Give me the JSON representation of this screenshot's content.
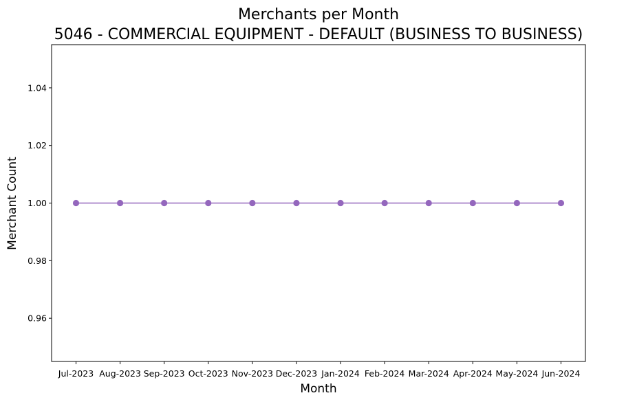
{
  "chart_data": {
    "type": "line",
    "title": "Merchants per Month",
    "subtitle": "5046 - COMMERCIAL EQUIPMENT - DEFAULT (BUSINESS TO BUSINESS)",
    "xlabel": "Month",
    "ylabel": "Merchant Count",
    "categories": [
      "Jul-2023",
      "Aug-2023",
      "Sep-2023",
      "Oct-2023",
      "Nov-2023",
      "Dec-2023",
      "Jan-2024",
      "Feb-2024",
      "Mar-2024",
      "Apr-2024",
      "May-2024",
      "Jun-2024"
    ],
    "series": [
      {
        "values": [
          1,
          1,
          1,
          1,
          1,
          1,
          1,
          1,
          1,
          1,
          1,
          1
        ],
        "color": "#9467bd",
        "marker": "circle"
      }
    ],
    "ylim": [
      0.945,
      1.055
    ],
    "yticks": [
      0.96,
      0.98,
      1.0,
      1.02,
      1.04
    ],
    "ytick_labels": [
      "0.96",
      "0.98",
      "1.00",
      "1.02",
      "1.04"
    ],
    "grid": false,
    "legend": false
  }
}
